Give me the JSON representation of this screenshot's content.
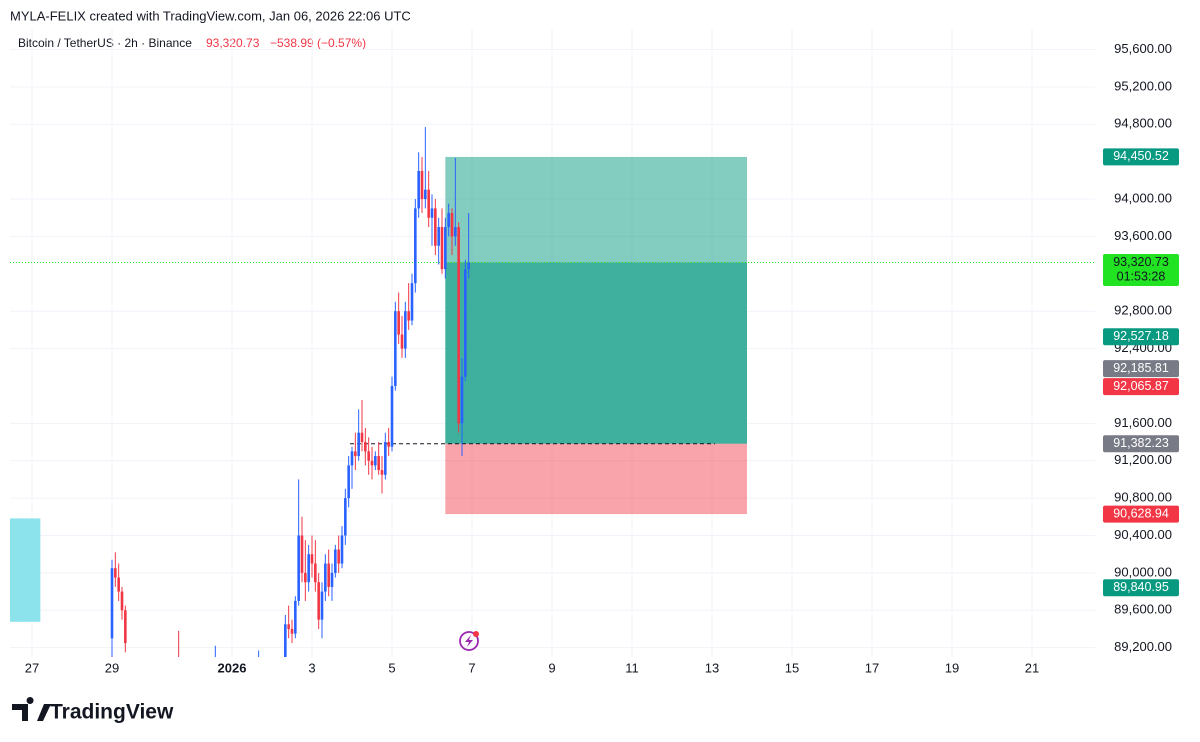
{
  "chart_data": {
    "type": "candlestick",
    "credit": "MYLA-FELIX created with TradingView.com, Jan 06, 2026 22:06 UTC",
    "symbol": "Bitcoin / TetherUS · 2h · Binance",
    "last_price": "93,320.73",
    "change": "−538.99 (−0.57%)",
    "brand": "TradingView",
    "up_color": "#2962ff",
    "down_color": "#f23645",
    "x": [
      "2025-12-29T00:00",
      "2025-12-29T02:00",
      "2025-12-29T04:00",
      "2025-12-29T06:00",
      "2025-12-29T08:00",
      "2025-12-30T16:00",
      "2025-12-31T14:00",
      "2026-01-01T16:00",
      "2026-01-02T08:00",
      "2026-01-02T10:00",
      "2026-01-02T12:00",
      "2026-01-02T14:00",
      "2026-01-02T16:00",
      "2026-01-02T18:00",
      "2026-01-02T20:00",
      "2026-01-02T22:00",
      "2026-01-03T00:00",
      "2026-01-03T02:00",
      "2026-01-03T04:00",
      "2026-01-03T06:00",
      "2026-01-03T08:00",
      "2026-01-03T10:00",
      "2026-01-03T12:00",
      "2026-01-03T14:00",
      "2026-01-03T16:00",
      "2026-01-03T18:00",
      "2026-01-03T20:00",
      "2026-01-03T22:00",
      "2026-01-04T00:00",
      "2026-01-04T02:00",
      "2026-01-04T04:00",
      "2026-01-04T06:00",
      "2026-01-04T08:00",
      "2026-01-04T10:00",
      "2026-01-04T12:00",
      "2026-01-04T14:00",
      "2026-01-04T16:00",
      "2026-01-04T18:00",
      "2026-01-04T20:00",
      "2026-01-04T22:00",
      "2026-01-05T00:00",
      "2026-01-05T02:00",
      "2026-01-05T04:00",
      "2026-01-05T06:00",
      "2026-01-05T08:00",
      "2026-01-05T10:00",
      "2026-01-05T12:00",
      "2026-01-05T14:00",
      "2026-01-05T16:00",
      "2026-01-05T18:00",
      "2026-01-05T20:00",
      "2026-01-05T22:00",
      "2026-01-06T00:00",
      "2026-01-06T02:00",
      "2026-01-06T04:00",
      "2026-01-06T06:00",
      "2026-01-06T08:00",
      "2026-01-06T10:00",
      "2026-01-06T12:00",
      "2026-01-06T14:00",
      "2026-01-06T16:00",
      "2026-01-06T18:00",
      "2026-01-06T20:00",
      "2026-01-06T22:00"
    ],
    "open": [
      89300,
      90050,
      89950,
      89800,
      89600,
      88900,
      88800,
      88850,
      89100,
      89450,
      89400,
      89350,
      89700,
      90400,
      90000,
      89900,
      90200,
      90100,
      89900,
      89500,
      89800,
      90100,
      89850,
      90000,
      90250,
      90100,
      90400,
      90800,
      91150,
      91300,
      91250,
      91500,
      91400,
      91300,
      91200,
      91150,
      91250,
      91100,
      91050,
      91400,
      91350,
      92000,
      92800,
      92550,
      92400,
      92800,
      92700,
      93100,
      93900,
      94300,
      94000,
      94100,
      93800,
      93900,
      93500,
      93700,
      93250,
      93700,
      93850,
      93600,
      93700,
      91600,
      92100,
      93250
    ],
    "high": [
      90140,
      90220,
      90100,
      89850,
      89650,
      89380,
      89220,
      89170,
      89550,
      89650,
      89500,
      89750,
      91000,
      90600,
      90350,
      90300,
      90400,
      90350,
      90000,
      89900,
      90200,
      90250,
      90100,
      90300,
      90400,
      90500,
      90900,
      91250,
      91350,
      91500,
      91750,
      91850,
      91550,
      91450,
      91350,
      91300,
      91400,
      91250,
      91500,
      91550,
      92100,
      92900,
      93000,
      92750,
      92900,
      93100,
      93200,
      94000,
      94500,
      94450,
      94770,
      94300,
      94050,
      94000,
      93800,
      93900,
      93800,
      93950,
      93900,
      94440,
      93750,
      92300,
      93350,
      93850
    ],
    "low": [
      89100,
      89850,
      89700,
      89500,
      89150,
      88600,
      88700,
      88700,
      88900,
      89300,
      89250,
      89300,
      89650,
      89900,
      89700,
      89800,
      89950,
      89800,
      89400,
      89300,
      89700,
      89750,
      89700,
      89950,
      90000,
      90050,
      90300,
      90700,
      90900,
      91100,
      91200,
      91300,
      91150,
      91050,
      91000,
      91100,
      91050,
      90850,
      91000,
      91250,
      91300,
      91950,
      92450,
      92300,
      92300,
      92600,
      92650,
      93000,
      93800,
      93850,
      93900,
      93700,
      93500,
      93400,
      93300,
      93200,
      93150,
      93600,
      93400,
      93500,
      91500,
      91250,
      92050,
      93150
    ],
    "close": [
      90050,
      89950,
      89800,
      89600,
      89250,
      88800,
      88950,
      88900,
      89450,
      89400,
      89350,
      89700,
      90400,
      90000,
      89900,
      90200,
      90100,
      89900,
      89500,
      89800,
      90100,
      89850,
      90000,
      90250,
      90100,
      90400,
      90800,
      91150,
      91300,
      91250,
      91500,
      91400,
      91300,
      91200,
      91150,
      91250,
      91100,
      91050,
      91400,
      91350,
      92000,
      92800,
      92550,
      92400,
      92800,
      92700,
      93100,
      93900,
      94300,
      94000,
      94100,
      93800,
      93900,
      93500,
      93700,
      93250,
      93700,
      93850,
      93600,
      93700,
      91600,
      92100,
      93250,
      93320.73
    ],
    "xlim": [
      "2025-12-26T10:48",
      "2026-01-22T13:48"
    ],
    "ylim": [
      89100,
      95830
    ],
    "xticks": [
      {
        "value": "2025-12-27T00:00",
        "label": "27"
      },
      {
        "value": "2025-12-29T00:00",
        "label": "29"
      },
      {
        "value": "2026-01-01T00:00",
        "label": "2026"
      },
      {
        "value": "2026-01-03T00:00",
        "label": "3"
      },
      {
        "value": "2026-01-05T00:00",
        "label": "5"
      },
      {
        "value": "2026-01-07T00:00",
        "label": "7"
      },
      {
        "value": "2026-01-09T00:00",
        "label": "9"
      },
      {
        "value": "2026-01-11T00:00",
        "label": "11"
      },
      {
        "value": "2026-01-13T00:00",
        "label": "13"
      },
      {
        "value": "2026-01-15T00:00",
        "label": "15"
      },
      {
        "value": "2026-01-17T00:00",
        "label": "17"
      },
      {
        "value": "2026-01-19T00:00",
        "label": "19"
      },
      {
        "value": "2026-01-21T00:00",
        "label": "21"
      }
    ],
    "yticks": [
      {
        "value": 89200,
        "label": "89,200.00"
      },
      {
        "value": 89600,
        "label": "89,600.00"
      },
      {
        "value": 90000,
        "label": "90,000.00"
      },
      {
        "value": 90400,
        "label": "90,400.00"
      },
      {
        "value": 90800,
        "label": "90,800.00"
      },
      {
        "value": 91200,
        "label": "91,200.00"
      },
      {
        "value": 91600,
        "label": "91,600.00"
      },
      {
        "value": 92400,
        "label": "92,400.00"
      },
      {
        "value": 92800,
        "label": "92,800.00"
      },
      {
        "value": 93600,
        "label": "93,600.00"
      },
      {
        "value": 94000,
        "label": "94,000.00"
      },
      {
        "value": 94800,
        "label": "94,800.00"
      },
      {
        "value": 95200,
        "label": "95,200.00"
      },
      {
        "value": 95600,
        "label": "95,600.00"
      }
    ],
    "grid": true,
    "long_position": {
      "start": "2026-01-06T08:00",
      "end": "2026-01-13T21:00",
      "entry": 91382.23,
      "target": 94450.52,
      "stop": 90628.94,
      "current": 93320.73
    },
    "highlight_box": {
      "start": "2025-12-26T10:48",
      "end": "2025-12-27T05:00",
      "top": 90583,
      "bottom": 89476,
      "color": "#8de3ec"
    },
    "price_labels": [
      {
        "value": 94450.52,
        "label": "94,450.52",
        "color": "#089981"
      },
      {
        "value": 93320.73,
        "label": "93,320.73",
        "color": "#22e322",
        "countdown": "01:53:28"
      },
      {
        "value": 92527.18,
        "label": "92,527.18",
        "color": "#089981"
      },
      {
        "value": 92185.81,
        "label": "92,185.81",
        "color": "#787b86"
      },
      {
        "value": 92065.87,
        "label": "92,065.87",
        "color": "#f23645"
      },
      {
        "value": 91382.23,
        "label": "91,382.23",
        "color": "#787b86"
      },
      {
        "value": 90628.94,
        "label": "90,628.94",
        "color": "#f23645"
      },
      {
        "value": 89840.95,
        "label": "89,840.95",
        "color": "#089981"
      }
    ]
  }
}
